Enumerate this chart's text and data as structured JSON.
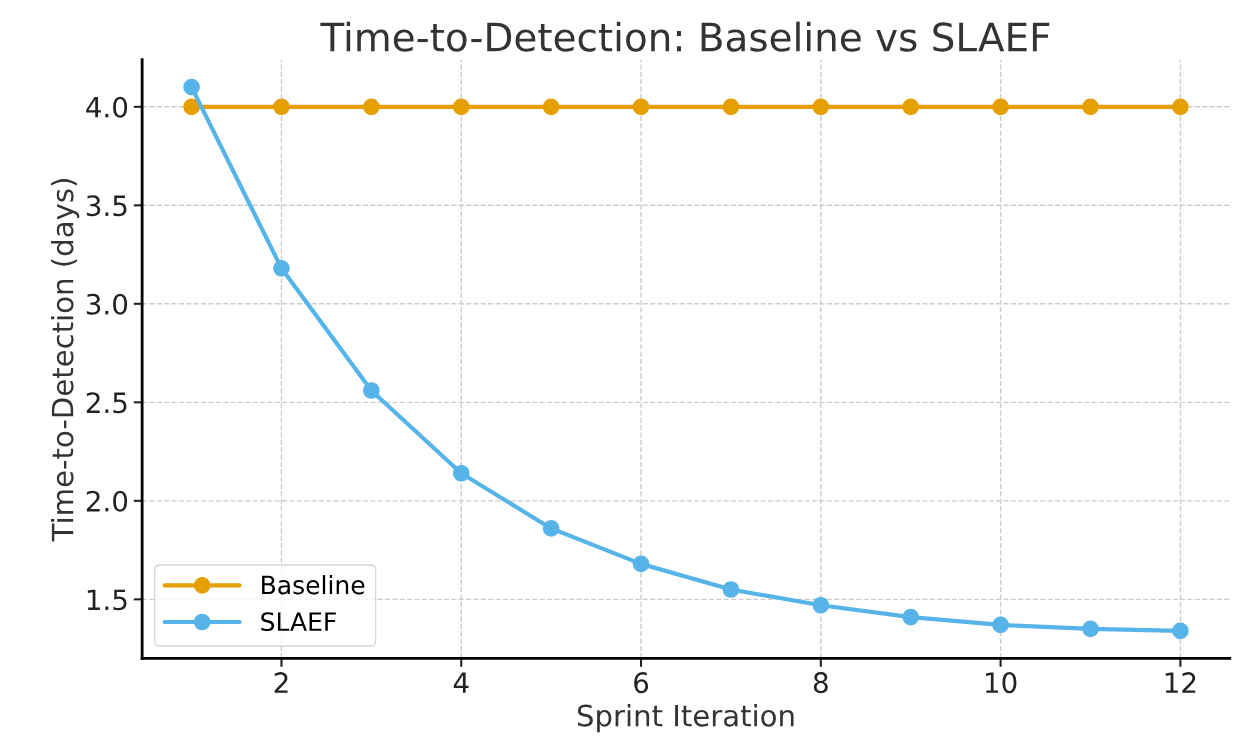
{
  "chart_data": {
    "type": "line",
    "title": "Time-to-Detection: Baseline vs SLAEF",
    "xlabel": "Sprint Iteration",
    "ylabel": "Time-to-Detection (days)",
    "x": [
      1,
      2,
      3,
      4,
      5,
      6,
      7,
      8,
      9,
      10,
      11,
      12
    ],
    "series": [
      {
        "name": "Baseline",
        "color": "#e69f00",
        "values": [
          4.0,
          4.0,
          4.0,
          4.0,
          4.0,
          4.0,
          4.0,
          4.0,
          4.0,
          4.0,
          4.0,
          4.0
        ]
      },
      {
        "name": "SLAEF",
        "color": "#56b4e9",
        "values": [
          4.1,
          3.18,
          2.56,
          2.14,
          1.86,
          1.68,
          1.55,
          1.47,
          1.41,
          1.37,
          1.35,
          1.34
        ]
      }
    ],
    "xlim": [
      0.45,
      12.55
    ],
    "ylim": [
      1.2,
      4.24
    ],
    "xticks": [
      2,
      4,
      6,
      8,
      10,
      12
    ],
    "yticks": [
      {
        "value": 1.5,
        "label": "1.5"
      },
      {
        "value": 2.0,
        "label": "2.0"
      },
      {
        "value": 2.5,
        "label": "2.5"
      },
      {
        "value": 3.0,
        "label": "3.0"
      },
      {
        "value": 3.5,
        "label": "3.5"
      },
      {
        "value": 4.0,
        "label": "4.0"
      }
    ],
    "grid": true,
    "legend": "bottom left",
    "marker": "circle",
    "line_style": "solid"
  }
}
